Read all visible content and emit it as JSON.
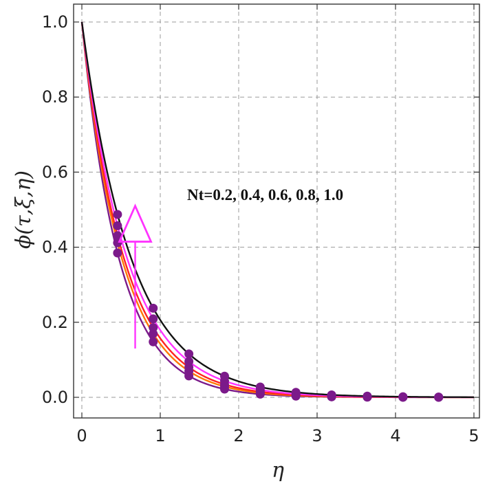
{
  "chart_data": {
    "type": "line",
    "title": "",
    "xlabel": "η",
    "ylabel": "ϕ(τ,ξ,η)",
    "xlim": [
      0,
      5
    ],
    "ylim": [
      -0.05,
      1.0
    ],
    "xticks": [
      0,
      1,
      2,
      3,
      4,
      5
    ],
    "xtick_labels": [
      "0",
      "1",
      "2",
      "3",
      "4",
      "5"
    ],
    "yticks": [
      0.0,
      0.2,
      0.4,
      0.6,
      0.8,
      1.0
    ],
    "ytick_labels": [
      "0.0",
      "0.2",
      "0.4",
      "0.6",
      "0.8",
      "1.0"
    ],
    "grid": true,
    "annotation": "Nt=0.2, 0.4, 0.6, 0.8, 1.0",
    "arrow": {
      "x": 0.68,
      "y_from": 0.13,
      "y_to": 0.51,
      "color": "#ff33ff"
    },
    "marker_x": [
      0.455,
      0.91,
      1.365,
      1.82,
      2.275,
      2.73,
      3.185,
      3.64,
      4.095,
      4.55
    ],
    "series": [
      {
        "color": "#7b1a8a",
        "k": 2.1,
        "marker_color": "#7b1a8a"
      },
      {
        "color": "#ff7700",
        "k": 1.95,
        "marker_color": "#7b1a8a"
      },
      {
        "color": "#ff2222",
        "k": 1.85,
        "marker_color": "#7b1a8a"
      },
      {
        "color": "#ff33ff",
        "k": 1.72,
        "marker_color": "#7b1a8a"
      },
      {
        "color": "#111111",
        "k": 1.58,
        "marker_color": "#7b1a8a"
      }
    ]
  }
}
